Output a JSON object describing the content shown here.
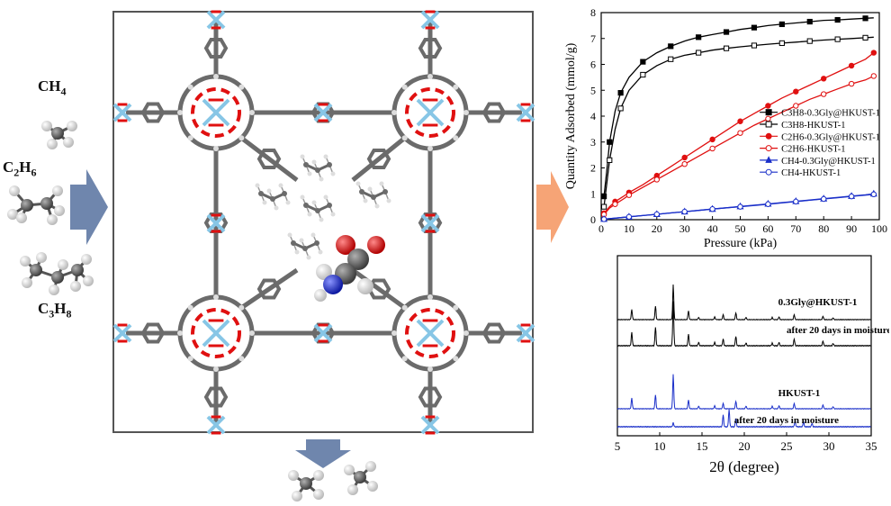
{
  "gases": {
    "ch4_label": "CH",
    "ch4_sub": "4",
    "c2h6_label": "C",
    "c2h6_sub1": "2",
    "c2h6_h": "H",
    "c2h6_sub2": "6",
    "c3h8_label": "C",
    "c3h8_sub1": "3",
    "c3h8_h": "H",
    "c3h8_sub2": "8"
  },
  "colors": {
    "copper": "#87c6e6",
    "oxygen": "#e01010",
    "carbon": "#6b6b6b",
    "hydrogen": "#f2f2f2",
    "nitrogen": "#1c2bd6",
    "arrow_in": "#6f86ad",
    "arrow_out": "#f6a476",
    "series_black": "#000000",
    "series_red": "#e01010",
    "series_blue": "#1a2fc9"
  },
  "chart_data": [
    {
      "type": "line",
      "title": "",
      "xlabel": "Pressure (kPa)",
      "ylabel": "Quantity Adsorbed (mmol/g)",
      "xlim": [
        0,
        100
      ],
      "ylim": [
        0,
        8
      ],
      "xticks": [
        "0",
        "10",
        "20",
        "30",
        "40",
        "50",
        "60",
        "70",
        "80",
        "90",
        "100"
      ],
      "yticks": [
        "0",
        "1",
        "2",
        "3",
        "4",
        "5",
        "6",
        "7",
        "8"
      ],
      "legend_position": "center-right",
      "series": [
        {
          "name": "C3H8-0.3Gly@HKUST-1",
          "color": "#000000",
          "marker": "filled-square",
          "x": [
            1,
            2,
            3,
            5,
            7,
            10,
            15,
            20,
            25,
            30,
            35,
            40,
            45,
            50,
            55,
            60,
            65,
            70,
            75,
            80,
            85,
            90,
            95,
            98
          ],
          "y": [
            0.9,
            1.9,
            3.0,
            4.2,
            4.9,
            5.5,
            6.1,
            6.45,
            6.7,
            6.9,
            7.05,
            7.15,
            7.25,
            7.35,
            7.42,
            7.5,
            7.55,
            7.6,
            7.65,
            7.7,
            7.72,
            7.75,
            7.78,
            7.8
          ]
        },
        {
          "name": "C3H8-HKUST-1",
          "color": "#000000",
          "marker": "open-square",
          "x": [
            1,
            2,
            3,
            5,
            7,
            10,
            15,
            20,
            25,
            30,
            35,
            40,
            45,
            50,
            55,
            60,
            65,
            70,
            75,
            80,
            85,
            90,
            95,
            98
          ],
          "y": [
            0.5,
            1.4,
            2.3,
            3.5,
            4.3,
            5.0,
            5.6,
            5.95,
            6.2,
            6.35,
            6.45,
            6.55,
            6.62,
            6.68,
            6.73,
            6.78,
            6.82,
            6.86,
            6.9,
            6.94,
            6.97,
            7.0,
            7.03,
            7.05
          ]
        },
        {
          "name": "C2H6-0.3Gly@HKUST-1",
          "color": "#e01010",
          "marker": "filled-circle",
          "x": [
            1,
            3,
            5,
            8,
            10,
            15,
            20,
            25,
            30,
            35,
            40,
            45,
            50,
            55,
            60,
            65,
            70,
            75,
            80,
            85,
            90,
            95,
            98
          ],
          "y": [
            0.25,
            0.5,
            0.7,
            0.9,
            1.05,
            1.35,
            1.7,
            2.05,
            2.4,
            2.75,
            3.1,
            3.45,
            3.8,
            4.1,
            4.4,
            4.7,
            4.95,
            5.2,
            5.45,
            5.7,
            5.95,
            6.2,
            6.45
          ]
        },
        {
          "name": "C2H6-HKUST-1",
          "color": "#e01010",
          "marker": "open-circle",
          "x": [
            1,
            3,
            5,
            8,
            10,
            15,
            20,
            25,
            30,
            35,
            40,
            45,
            50,
            55,
            60,
            65,
            70,
            75,
            80,
            85,
            90,
            95,
            98
          ],
          "y": [
            0.2,
            0.45,
            0.6,
            0.8,
            0.95,
            1.25,
            1.55,
            1.85,
            2.15,
            2.45,
            2.75,
            3.05,
            3.35,
            3.65,
            3.9,
            4.15,
            4.4,
            4.65,
            4.85,
            5.05,
            5.25,
            5.4,
            5.55
          ]
        },
        {
          "name": "CH4-0.3Gly@HKUST-1",
          "color": "#1a2fc9",
          "marker": "filled-triangle",
          "x": [
            1,
            5,
            10,
            15,
            20,
            25,
            30,
            35,
            40,
            45,
            50,
            55,
            60,
            65,
            70,
            75,
            80,
            85,
            90,
            95,
            98
          ],
          "y": [
            0.02,
            0.06,
            0.11,
            0.16,
            0.21,
            0.26,
            0.31,
            0.36,
            0.41,
            0.46,
            0.51,
            0.56,
            0.61,
            0.66,
            0.71,
            0.76,
            0.81,
            0.86,
            0.91,
            0.96,
            1.0
          ]
        },
        {
          "name": "CH4-HKUST-1",
          "color": "#1a2fc9",
          "marker": "open-circle",
          "x": [
            1,
            5,
            10,
            15,
            20,
            25,
            30,
            35,
            40,
            45,
            50,
            55,
            60,
            65,
            70,
            75,
            80,
            85,
            90,
            95,
            98
          ],
          "y": [
            0.02,
            0.06,
            0.11,
            0.16,
            0.21,
            0.26,
            0.31,
            0.36,
            0.41,
            0.46,
            0.5,
            0.55,
            0.6,
            0.65,
            0.7,
            0.75,
            0.8,
            0.85,
            0.9,
            0.95,
            0.98
          ]
        }
      ]
    },
    {
      "type": "line",
      "title": "",
      "xlabel": "2θ (degree)",
      "ylabel": "",
      "xlim": [
        5,
        35
      ],
      "xticks": [
        "5",
        "10",
        "15",
        "20",
        "25",
        "30",
        "35"
      ],
      "series": [
        {
          "name": "0.3Gly@HKUST-1",
          "color": "#000000",
          "offset": 3,
          "peaks": [
            [
              6.7,
              0.45
            ],
            [
              9.5,
              0.6
            ],
            [
              11.6,
              1.55
            ],
            [
              13.4,
              0.4
            ],
            [
              14.6,
              0.1
            ],
            [
              16.5,
              0.12
            ],
            [
              17.5,
              0.22
            ],
            [
              19.0,
              0.3
            ],
            [
              20.2,
              0.1
            ],
            [
              23.3,
              0.1
            ],
            [
              24.1,
              0.12
            ],
            [
              25.9,
              0.22
            ],
            [
              29.3,
              0.15
            ],
            [
              30.5,
              0.08
            ]
          ]
        },
        {
          "name": "after 20 days in moisture",
          "color": "#000000",
          "offset": 2,
          "peaks": [
            [
              6.7,
              0.4
            ],
            [
              9.5,
              0.55
            ],
            [
              11.6,
              1.3
            ],
            [
              13.4,
              0.35
            ],
            [
              14.6,
              0.1
            ],
            [
              16.5,
              0.1
            ],
            [
              17.5,
              0.2
            ],
            [
              19.0,
              0.28
            ],
            [
              20.2,
              0.08
            ],
            [
              23.3,
              0.08
            ],
            [
              24.1,
              0.1
            ],
            [
              25.9,
              0.2
            ],
            [
              29.3,
              0.14
            ],
            [
              30.5,
              0.07
            ]
          ]
        },
        {
          "name": "HKUST-1",
          "color": "#1a2fc9",
          "offset": 1,
          "peaks": [
            [
              6.7,
              0.5
            ],
            [
              9.5,
              0.65
            ],
            [
              11.6,
              1.6
            ],
            [
              13.4,
              0.42
            ],
            [
              14.6,
              0.12
            ],
            [
              16.5,
              0.14
            ],
            [
              17.5,
              0.25
            ],
            [
              19.0,
              0.35
            ],
            [
              20.2,
              0.12
            ],
            [
              23.3,
              0.12
            ],
            [
              24.1,
              0.14
            ],
            [
              25.9,
              0.25
            ],
            [
              29.3,
              0.18
            ],
            [
              30.5,
              0.1
            ]
          ]
        },
        {
          "name": "after 20 days in moisture",
          "color": "#1a2fc9",
          "offset": 0,
          "peaks": [
            [
              11.6,
              0.12
            ],
            [
              17.5,
              0.35
            ],
            [
              18.2,
              0.5
            ],
            [
              19.0,
              0.25
            ],
            [
              26.0,
              0.18
            ],
            [
              27.0,
              0.15
            ],
            [
              28.0,
              0.1
            ]
          ]
        }
      ]
    }
  ]
}
